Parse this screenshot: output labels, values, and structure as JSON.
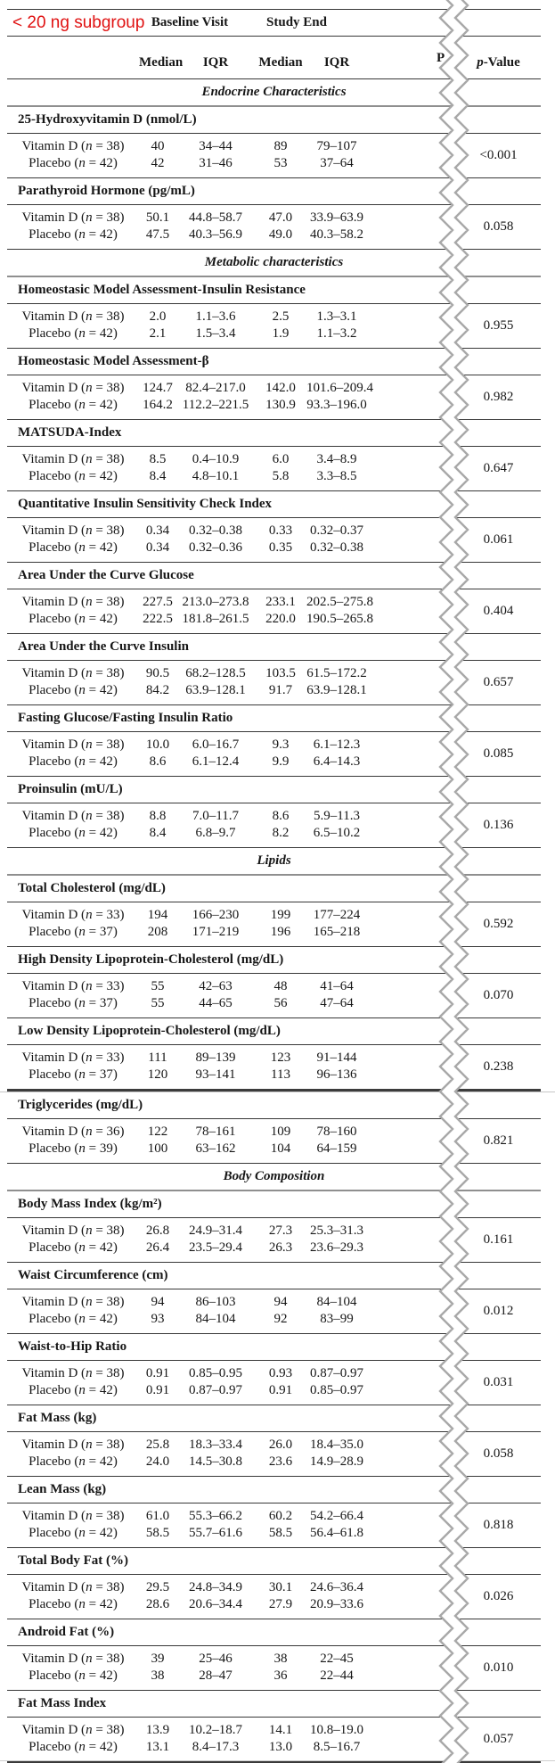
{
  "colors": {
    "accent_red": "#e01212",
    "rule_dark": "#383838",
    "rule_gray": "#8f8f8f",
    "tear_gray": "#a8a8a8"
  },
  "header": {
    "subgroup_label": "< 20 ng subgroup",
    "baseline_label": "Baseline Visit",
    "end_label": "Study End",
    "col_median": "Median",
    "col_iqr": "IQR",
    "cut_fragment": "P",
    "p_value_parts": [
      "p",
      "-Value"
    ]
  },
  "sections": [
    {
      "type": "band",
      "label": "Endocrine Characteristics"
    },
    {
      "type": "measure",
      "label": "25-Hydroxyvitamin D (nmol/L)",
      "p_value": "<0.001",
      "rows": [
        {
          "label_parts": [
            "Vitamin D (",
            "n",
            " = 38)"
          ],
          "baseline_median": "40",
          "baseline_iqr": "34–44",
          "end_median": "89",
          "end_iqr": "79–107"
        },
        {
          "label_parts": [
            "Placebo (",
            "n",
            " = 42)"
          ],
          "baseline_median": "42",
          "baseline_iqr": "31–46",
          "end_median": "53",
          "end_iqr": "37–64"
        }
      ]
    },
    {
      "type": "measure",
      "label": "Parathyroid Hormone (pg/mL)",
      "p_value": "0.058",
      "rows": [
        {
          "label_parts": [
            "Vitamin D (",
            "n",
            " = 38)"
          ],
          "baseline_median": "50.1",
          "baseline_iqr": "44.8–58.7",
          "end_median": "47.0",
          "end_iqr": "33.9–63.9"
        },
        {
          "label_parts": [
            "Placebo (",
            "n",
            " = 42)"
          ],
          "baseline_median": "47.5",
          "baseline_iqr": "40.3–56.9",
          "end_median": "49.0",
          "end_iqr": "40.3–58.2"
        }
      ]
    },
    {
      "type": "band",
      "label": "Metabolic characteristics"
    },
    {
      "type": "measure",
      "label": "Homeostasic Model Assessment-Insulin Resistance",
      "p_value": "0.955",
      "rows": [
        {
          "label_parts": [
            "Vitamin D (",
            "n",
            " = 38)"
          ],
          "baseline_median": "2.0",
          "baseline_iqr": "1.1–3.6",
          "end_median": "2.5",
          "end_iqr": "1.3–3.1"
        },
        {
          "label_parts": [
            "Placebo (",
            "n",
            " = 42)"
          ],
          "baseline_median": "2.1",
          "baseline_iqr": "1.5–3.4",
          "end_median": "1.9",
          "end_iqr": "1.1–3.2"
        }
      ]
    },
    {
      "type": "measure",
      "label": "Homeostasic Model Assessment-β",
      "p_value": "0.982",
      "rows": [
        {
          "label_parts": [
            "Vitamin D (",
            "n",
            " = 38)"
          ],
          "baseline_median": "124.7",
          "baseline_iqr": "82.4–217.0",
          "end_median": "142.0",
          "end_iqr": "101.6–209.4"
        },
        {
          "label_parts": [
            "Placebo (",
            "n",
            " = 42)"
          ],
          "baseline_median": "164.2",
          "baseline_iqr": "112.2–221.5",
          "end_median": "130.9",
          "end_iqr": "93.3–196.0"
        }
      ]
    },
    {
      "type": "measure",
      "label": "MATSUDA-Index",
      "p_value": "0.647",
      "rows": [
        {
          "label_parts": [
            "Vitamin D (",
            "n",
            " = 38)"
          ],
          "baseline_median": "8.5",
          "baseline_iqr": "0.4–10.9",
          "end_median": "6.0",
          "end_iqr": "3.4–8.9"
        },
        {
          "label_parts": [
            "Placebo (",
            "n",
            " = 42)"
          ],
          "baseline_median": "8.4",
          "baseline_iqr": "4.8–10.1",
          "end_median": "5.8",
          "end_iqr": "3.3–8.5"
        }
      ]
    },
    {
      "type": "measure",
      "label": "Quantitative Insulin Sensitivity Check Index",
      "p_value": "0.061",
      "rows": [
        {
          "label_parts": [
            "Vitamin D (",
            "n",
            " = 38)"
          ],
          "baseline_median": "0.34",
          "baseline_iqr": "0.32–0.38",
          "end_median": "0.33",
          "end_iqr": "0.32–0.37"
        },
        {
          "label_parts": [
            "Placebo (",
            "n",
            " = 42)"
          ],
          "baseline_median": "0.34",
          "baseline_iqr": "0.32–0.36",
          "end_median": "0.35",
          "end_iqr": "0.32–0.38"
        }
      ]
    },
    {
      "type": "measure",
      "label": "Area Under the Curve Glucose",
      "p_value": "0.404",
      "rows": [
        {
          "label_parts": [
            "Vitamin D (",
            "n",
            " = 38)"
          ],
          "baseline_median": "227.5",
          "baseline_iqr": "213.0–273.8",
          "end_median": "233.1",
          "end_iqr": "202.5–275.8"
        },
        {
          "label_parts": [
            "Placebo (",
            "n",
            " = 42)"
          ],
          "baseline_median": "222.5",
          "baseline_iqr": "181.8–261.5",
          "end_median": "220.0",
          "end_iqr": "190.5–265.8"
        }
      ]
    },
    {
      "type": "measure",
      "label": "Area Under the Curve Insulin",
      "p_value": "0.657",
      "rows": [
        {
          "label_parts": [
            "Vitamin D (",
            "n",
            " = 38)"
          ],
          "baseline_median": "90.5",
          "baseline_iqr": "68.2–128.5",
          "end_median": "103.5",
          "end_iqr": "61.5–172.2"
        },
        {
          "label_parts": [
            "Placebo (",
            "n",
            " = 42)"
          ],
          "baseline_median": "84.2",
          "baseline_iqr": "63.9–128.1",
          "end_median": "91.7",
          "end_iqr": "63.9–128.1"
        }
      ]
    },
    {
      "type": "measure",
      "label": "Fasting Glucose/Fasting Insulin Ratio",
      "p_value": "0.085",
      "rows": [
        {
          "label_parts": [
            "Vitamin D (",
            "n",
            " = 38)"
          ],
          "baseline_median": "10.0",
          "baseline_iqr": "6.0–16.7",
          "end_median": "9.3",
          "end_iqr": "6.1–12.3"
        },
        {
          "label_parts": [
            "Placebo (",
            "n",
            " = 42)"
          ],
          "baseline_median": "8.6",
          "baseline_iqr": "6.1–12.4",
          "end_median": "9.9",
          "end_iqr": "6.4–14.3"
        }
      ]
    },
    {
      "type": "measure",
      "label": "Proinsulin (mU/L)",
      "p_value": "0.136",
      "rows": [
        {
          "label_parts": [
            "Vitamin D (",
            "n",
            " = 38)"
          ],
          "baseline_median": "8.8",
          "baseline_iqr": "7.0–11.7",
          "end_median": "8.6",
          "end_iqr": "5.9–11.3"
        },
        {
          "label_parts": [
            "Placebo (",
            "n",
            " = 42)"
          ],
          "baseline_median": "8.4",
          "baseline_iqr": "6.8–9.7",
          "end_median": "8.2",
          "end_iqr": "6.5–10.2"
        }
      ]
    },
    {
      "type": "band",
      "label": "Lipids"
    },
    {
      "type": "measure",
      "label": "Total Cholesterol (mg/dL)",
      "p_value": "0.592",
      "rows": [
        {
          "label_parts": [
            "Vitamin D (",
            "n",
            " = 33)"
          ],
          "baseline_median": "194",
          "baseline_iqr": "166–230",
          "end_median": "199",
          "end_iqr": "177–224"
        },
        {
          "label_parts": [
            "Placebo (",
            "n",
            " = 37)"
          ],
          "baseline_median": "208",
          "baseline_iqr": "171–219",
          "end_median": "196",
          "end_iqr": "165–218"
        }
      ]
    },
    {
      "type": "measure",
      "label": "High Density Lipoprotein-Cholesterol (mg/dL)",
      "p_value": "0.070",
      "rows": [
        {
          "label_parts": [
            "Vitamin D (",
            "n",
            " = 33)"
          ],
          "baseline_median": "55",
          "baseline_iqr": "42–63",
          "end_median": "48",
          "end_iqr": "41–64"
        },
        {
          "label_parts": [
            "Placebo (",
            "n",
            " = 37)"
          ],
          "baseline_median": "55",
          "baseline_iqr": "44–65",
          "end_median": "56",
          "end_iqr": "47–64"
        }
      ]
    },
    {
      "type": "measure",
      "label": "Low Density Lipoprotein-Cholesterol (mg/dL)",
      "p_value": "0.238",
      "page_break_after": true,
      "rows": [
        {
          "label_parts": [
            "Vitamin D (",
            "n",
            " = 33)"
          ],
          "baseline_median": "111",
          "baseline_iqr": "89–139",
          "end_median": "123",
          "end_iqr": "91–144"
        },
        {
          "label_parts": [
            "Placebo (",
            "n",
            " = 37)"
          ],
          "baseline_median": "120",
          "baseline_iqr": "93–141",
          "end_median": "113",
          "end_iqr": "96–136"
        }
      ]
    },
    {
      "type": "measure",
      "label": "Triglycerides (mg/dL)",
      "p_value": "0.821",
      "rows": [
        {
          "label_parts": [
            "Vitamin D (",
            "n",
            " = 36)"
          ],
          "baseline_median": "122",
          "baseline_iqr": "78–161",
          "end_median": "109",
          "end_iqr": "78–160"
        },
        {
          "label_parts": [
            "Placebo (",
            "n",
            " = 39)"
          ],
          "baseline_median": "100",
          "baseline_iqr": "63–162",
          "end_median": "104",
          "end_iqr": "64–159"
        }
      ]
    },
    {
      "type": "band",
      "label": "Body Composition"
    },
    {
      "type": "measure",
      "label": "Body Mass Index (kg/m²)",
      "p_value": "0.161",
      "rows": [
        {
          "label_parts": [
            "Vitamin D (",
            "n",
            " = 38)"
          ],
          "baseline_median": "26.8",
          "baseline_iqr": "24.9–31.4",
          "end_median": "27.3",
          "end_iqr": "25.3–31.3"
        },
        {
          "label_parts": [
            "Placebo (",
            "n",
            " = 42)"
          ],
          "baseline_median": "26.4",
          "baseline_iqr": "23.5–29.4",
          "end_median": "26.3",
          "end_iqr": "23.6–29.3"
        }
      ]
    },
    {
      "type": "measure",
      "label": "Waist Circumference (cm)",
      "p_value": "0.012",
      "rows": [
        {
          "label_parts": [
            "Vitamin D (",
            "n",
            " = 38)"
          ],
          "baseline_median": "94",
          "baseline_iqr": "86–103",
          "end_median": "94",
          "end_iqr": "84–104"
        },
        {
          "label_parts": [
            "Placebo (",
            "n",
            " = 42)"
          ],
          "baseline_median": "93",
          "baseline_iqr": "84–104",
          "end_median": "92",
          "end_iqr": "83–99"
        }
      ]
    },
    {
      "type": "measure",
      "label": "Waist-to-Hip Ratio",
      "p_value": "0.031",
      "rows": [
        {
          "label_parts": [
            "Vitamin D (",
            "n",
            " = 38)"
          ],
          "baseline_median": "0.91",
          "baseline_iqr": "0.85–0.95",
          "end_median": "0.93",
          "end_iqr": "0.87–0.97"
        },
        {
          "label_parts": [
            "Placebo (",
            "n",
            " = 42)"
          ],
          "baseline_median": "0.91",
          "baseline_iqr": "0.87–0.97",
          "end_median": "0.91",
          "end_iqr": "0.85–0.97"
        }
      ]
    },
    {
      "type": "measure",
      "label": "Fat Mass (kg)",
      "p_value": "0.058",
      "rows": [
        {
          "label_parts": [
            "Vitamin D (",
            "n",
            " = 38)"
          ],
          "baseline_median": "25.8",
          "baseline_iqr": "18.3–33.4",
          "end_median": "26.0",
          "end_iqr": "18.4–35.0"
        },
        {
          "label_parts": [
            "Placebo (",
            "n",
            " = 42)"
          ],
          "baseline_median": "24.0",
          "baseline_iqr": "14.5–30.8",
          "end_median": "23.6",
          "end_iqr": "14.9–28.9"
        }
      ]
    },
    {
      "type": "measure",
      "label": "Lean Mass (kg)",
      "p_value": "0.818",
      "rows": [
        {
          "label_parts": [
            "Vitamin D (",
            "n",
            " = 38)"
          ],
          "baseline_median": "61.0",
          "baseline_iqr": "55.3–66.2",
          "end_median": "60.2",
          "end_iqr": "54.2–66.4"
        },
        {
          "label_parts": [
            "Placebo (",
            "n",
            " = 42)"
          ],
          "baseline_median": "58.5",
          "baseline_iqr": "55.7–61.6",
          "end_median": "58.5",
          "end_iqr": "56.4–61.8"
        }
      ]
    },
    {
      "type": "measure",
      "label": "Total Body Fat (%)",
      "p_value": "0.026",
      "rows": [
        {
          "label_parts": [
            "Vitamin D (",
            "n",
            " = 38)"
          ],
          "baseline_median": "29.5",
          "baseline_iqr": "24.8–34.9",
          "end_median": "30.1",
          "end_iqr": "24.6–36.4"
        },
        {
          "label_parts": [
            "Placebo (",
            "n",
            " = 42)"
          ],
          "baseline_median": "28.6",
          "baseline_iqr": "20.6–34.4",
          "end_median": "27.9",
          "end_iqr": "20.9–33.6"
        }
      ]
    },
    {
      "type": "measure",
      "label": "Android Fat (%)",
      "p_value": "0.010",
      "rows": [
        {
          "label_parts": [
            "Vitamin D (",
            "n",
            " = 38)"
          ],
          "baseline_median": "39",
          "baseline_iqr": "25–46",
          "end_median": "38",
          "end_iqr": "22–45"
        },
        {
          "label_parts": [
            "Placebo (",
            "n",
            " = 42)"
          ],
          "baseline_median": "38",
          "baseline_iqr": "28–47",
          "end_median": "36",
          "end_iqr": "22–44"
        }
      ]
    },
    {
      "type": "measure",
      "label": "Fat Mass Index",
      "p_value": "0.057",
      "thick_bottom": true,
      "rows": [
        {
          "label_parts": [
            "Vitamin D (",
            "n",
            " = 38)"
          ],
          "baseline_median": "13.9",
          "baseline_iqr": "10.2–18.7",
          "end_median": "14.1",
          "end_iqr": "10.8–19.0"
        },
        {
          "label_parts": [
            "Placebo (",
            "n",
            " = 42)"
          ],
          "baseline_median": "13.1",
          "baseline_iqr": "8.4–17.3",
          "end_median": "13.0",
          "end_iqr": "8.5–16.7"
        }
      ]
    }
  ]
}
